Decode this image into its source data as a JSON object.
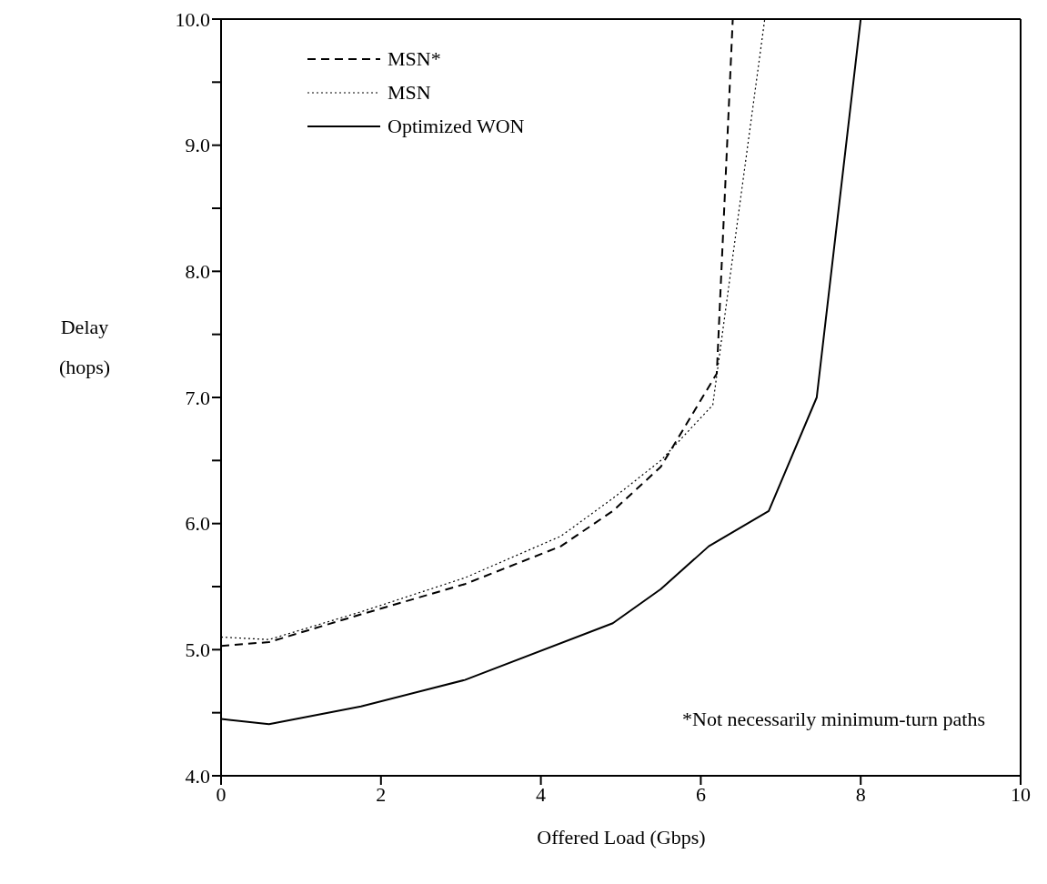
{
  "chart_data": {
    "type": "line",
    "xlabel": "Offered Load (Gbps)",
    "ylabel": "Delay (hops)",
    "xlim": [
      0,
      10
    ],
    "xticks": [
      0,
      2,
      4,
      6,
      8,
      10
    ],
    "ylim": [
      4,
      10
    ],
    "yticks": [
      {
        "value": 4,
        "label": "4.0"
      },
      {
        "value": 4.5,
        "label": null
      },
      {
        "value": 5,
        "label": "5.0"
      },
      {
        "value": 5.5,
        "label": null
      },
      {
        "value": 6,
        "label": "6.0"
      },
      {
        "value": 6.5,
        "label": null
      },
      {
        "value": 7,
        "label": "7.0"
      },
      {
        "value": 7.5,
        "label": null
      },
      {
        "value": 8,
        "label": "8.0"
      },
      {
        "value": 8.5,
        "label": null
      },
      {
        "value": 9,
        "label": "9.0"
      },
      {
        "value": 9.5,
        "label": null
      },
      {
        "value": 10,
        "label": "10.0"
      }
    ],
    "series": [
      {
        "name": "MSN*",
        "color": "#000000",
        "line_style": "dashed",
        "x": [
          0,
          0.6,
          1.75,
          3.05,
          4.25,
          4.9,
          5.5,
          6.2,
          6.4
        ],
        "values": [
          5.03,
          5.06,
          5.28,
          5.52,
          5.82,
          6.1,
          6.45,
          7.19,
          10
        ]
      },
      {
        "name": "MSN",
        "color": "#000000",
        "line_style": "dotted",
        "x": [
          0,
          0.6,
          1.75,
          3.05,
          4.25,
          4.9,
          5.5,
          6.15,
          6.8
        ],
        "values": [
          5.1,
          5.08,
          5.3,
          5.57,
          5.9,
          6.2,
          6.5,
          6.94,
          10
        ]
      },
      {
        "name": "Optimized WON",
        "color": "#000000",
        "line_style": "solid",
        "x": [
          0,
          0.6,
          1.75,
          3.05,
          4.9,
          5.5,
          6.1,
          6.85,
          7.45,
          8.0
        ],
        "values": [
          4.45,
          4.41,
          4.55,
          4.76,
          5.21,
          5.48,
          5.82,
          6.1,
          7.0,
          10
        ]
      }
    ],
    "legend": "top left",
    "marker": "none",
    "annotations": [
      "*Not necessarily minimum-turn paths"
    ]
  }
}
